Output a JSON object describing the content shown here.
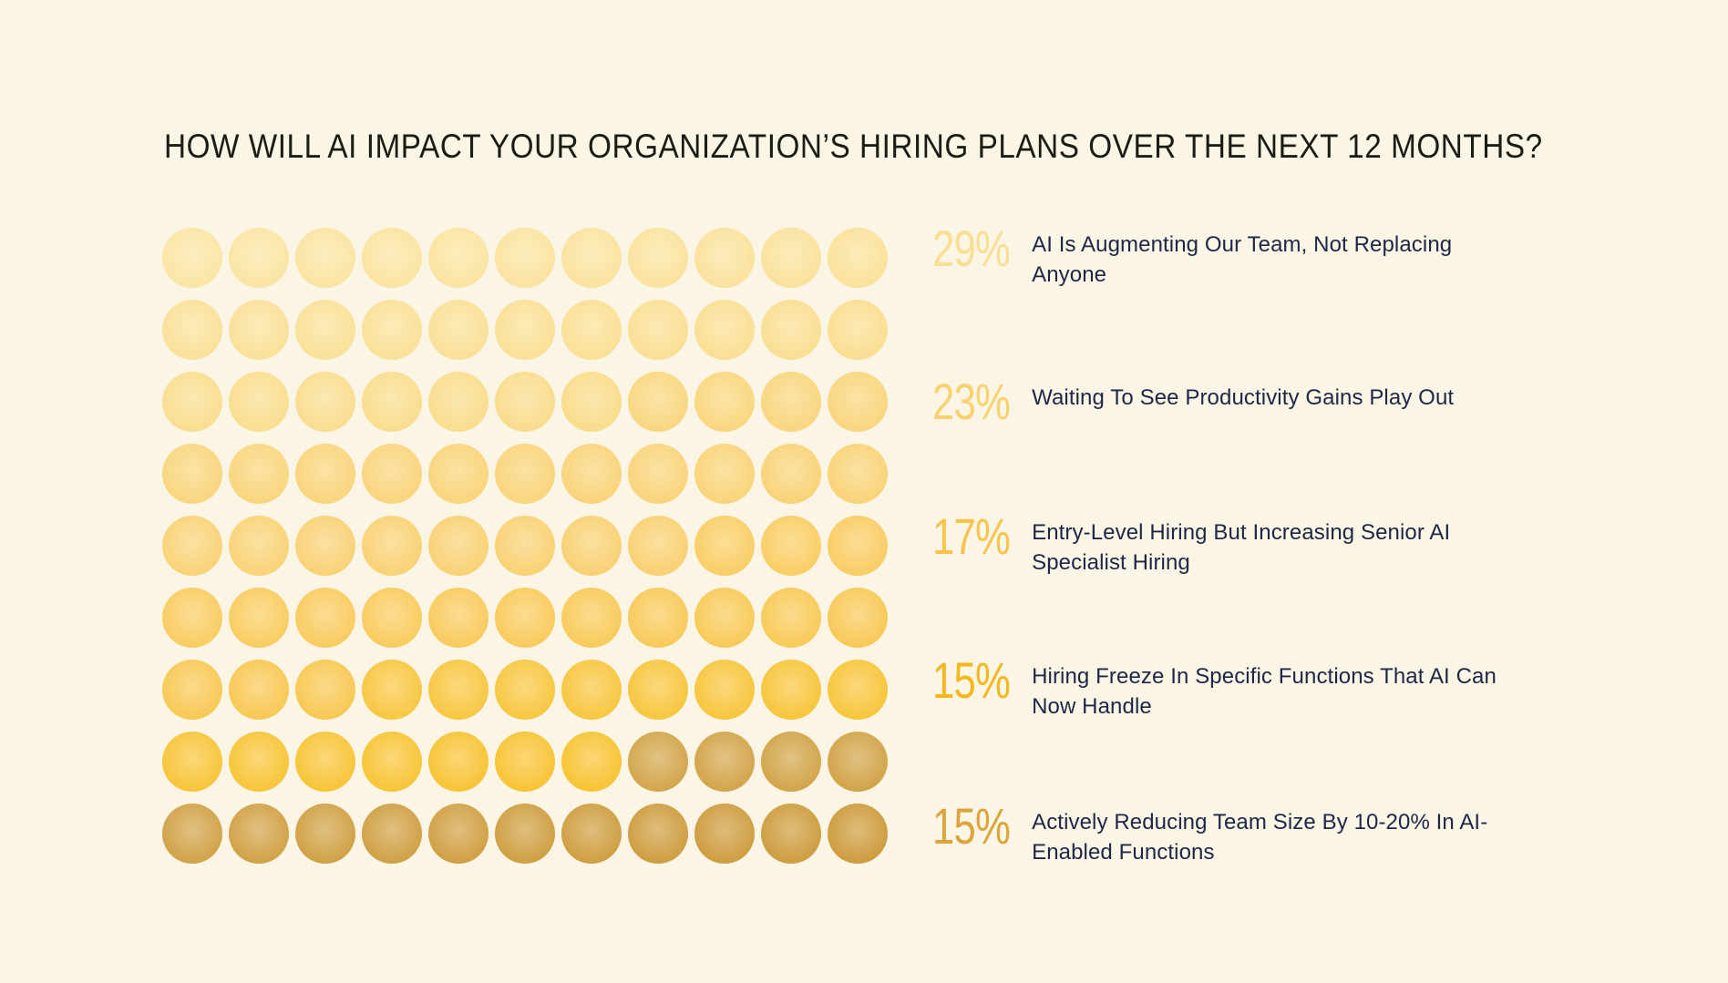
{
  "page": {
    "background_color": "#FAF5E4",
    "title_color": "#1C1C17",
    "label_color": "#1E2747"
  },
  "chart_data": {
    "type": "waffle",
    "title": "HOW WILL AI IMPACT YOUR ORGANIZATION’S HIRING PLANS OVER THE NEXT 12 MONTHS?",
    "unit": "1 dot = 1%",
    "grid": {
      "rows": 9,
      "columns": 11,
      "total_dots": 99,
      "fill_order": "row-major, left to right, top to bottom",
      "dot_shape": "circle with radial gradient, light center"
    },
    "legend_position": "right",
    "categories": [
      "AI Is Augmenting Our Team, Not Replacing Anyone",
      "Waiting To See Productivity Gains Play Out",
      "Entry-Level Hiring But Increasing Senior AI Specialist Hiring",
      "Hiring Freeze In Specific Functions That AI Can Now Handle",
      "Actively Reducing Team Size By 10-20% In AI-Enabled Functions"
    ],
    "values": [
      29,
      23,
      17,
      15,
      15
    ],
    "series": [
      {
        "label": "AI Is Augmenting Our Team, Not Replacing Anyone",
        "label_lines": [
          "AI Is Augmenting Our Team, Not Replacing",
          "Anyone"
        ],
        "value": 29,
        "pct_label": "29%",
        "pct_color": "#FADF92",
        "dot_color_from": "#FBE5A4",
        "dot_color_to": "#F9DC8B"
      },
      {
        "label": "Waiting To See Productivity Gains Play Out",
        "label_lines": [
          "Waiting To See Productivity Gains Play Out"
        ],
        "value": 23,
        "pct_label": "23%",
        "pct_color": "#F9D26F",
        "dot_color_from": "#F9D780",
        "dot_color_to": "#F9D173"
      },
      {
        "label": "Entry-Level Hiring But Increasing Senior AI Specialist Hiring",
        "label_lines": [
          "Entry-Level Hiring But Increasing Senior AI",
          "Specialist Hiring"
        ],
        "value": 17,
        "pct_label": "17%",
        "pct_color": "#F8C44E",
        "dot_color_from": "#F9CE66",
        "dot_color_to": "#F8C853"
      },
      {
        "label": "Hiring Freeze In Specific Functions That AI Can Now Handle",
        "label_lines": [
          "Hiring Freeze In Specific Functions That AI Can",
          "Now Handle"
        ],
        "value": 15,
        "pct_label": "15%",
        "pct_color": "#F5B71E",
        "dot_color_from": "#F8C743",
        "dot_color_to": "#F8C434"
      },
      {
        "label": "Actively Reducing Team Size By 10-20% In AI-Enabled Functions",
        "label_lines": [
          "Actively Reducing Team Size By 10-20% In AI-",
          "Enabled Functions"
        ],
        "value": 15,
        "pct_label": "15%",
        "pct_color": "#DDA43C",
        "dot_color_from": "#D3A64C",
        "dot_color_to": "#CD9C3E"
      }
    ]
  }
}
